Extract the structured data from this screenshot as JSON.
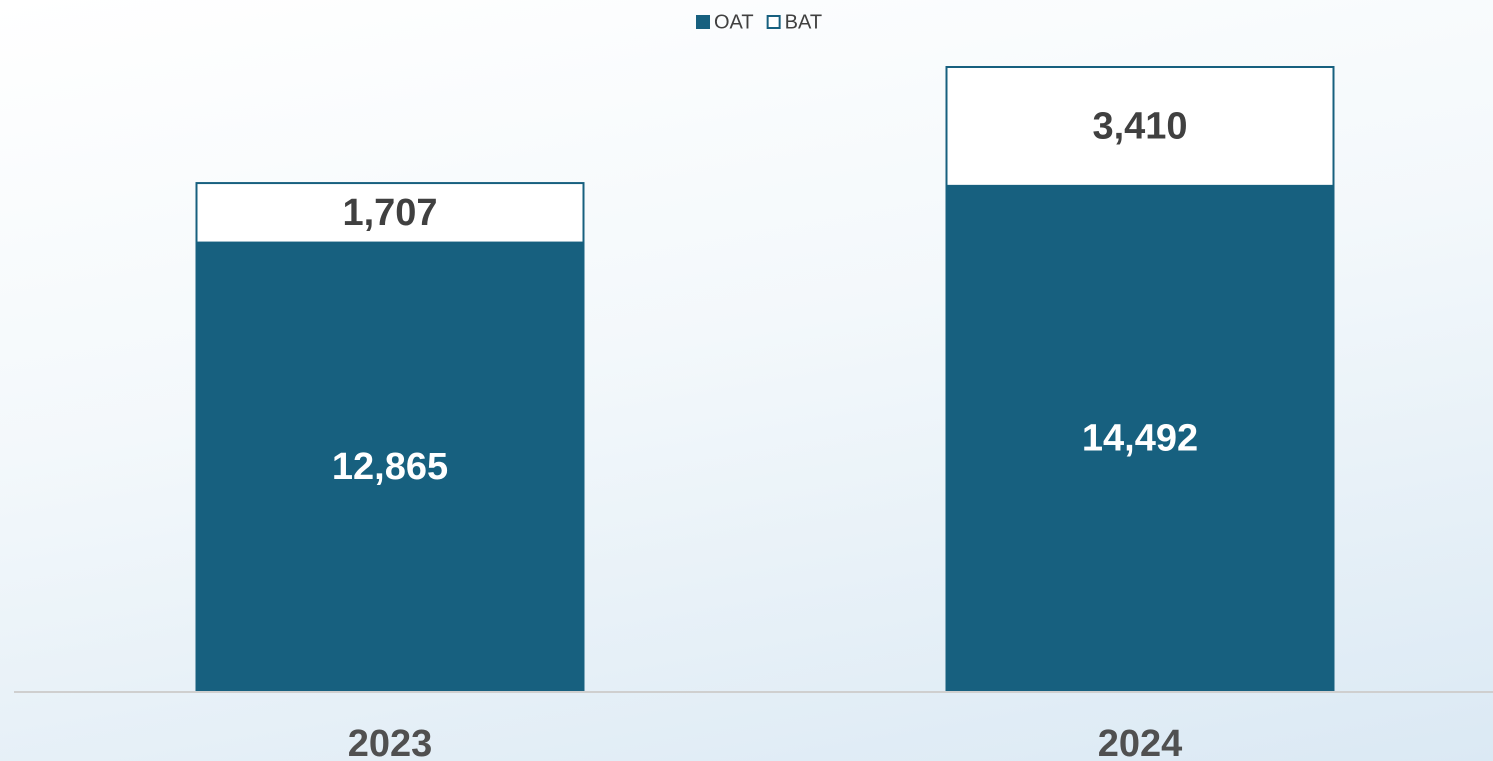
{
  "chart_data": {
    "type": "stacked_bar",
    "categories": [
      "2023",
      "2024"
    ],
    "series": [
      {
        "name": "OAT",
        "color": "#17607f",
        "values": [
          12865,
          14492
        ],
        "value_labels": [
          "12,865",
          "14,492"
        ]
      },
      {
        "name": "BAT",
        "color": "#ffffff",
        "values": [
          1707,
          3410
        ],
        "value_labels": [
          "1,707",
          "3,410"
        ]
      }
    ],
    "edgecolor": "#17607f",
    "legend": "top"
  }
}
